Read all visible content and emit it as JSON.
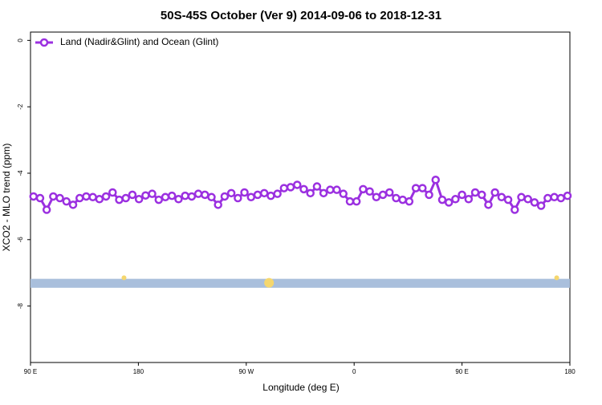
{
  "chart_data": {
    "type": "line",
    "title": "50S-45S October (Ver 9)   2014-09-06 to 2018-12-31",
    "x_label": "Longitude (deg E)",
    "y_label": "XCO2 - MLO trend (ppm)",
    "xlim": [
      90,
      540
    ],
    "ylim": [
      -9.7,
      0.25
    ],
    "xticks": [
      {
        "value": 90,
        "label": "90 E"
      },
      {
        "value": 180,
        "label": "180"
      },
      {
        "value": 270,
        "label": "90 W"
      },
      {
        "value": 360,
        "label": "0"
      },
      {
        "value": 450,
        "label": "90 E"
      },
      {
        "value": 540,
        "label": "180"
      }
    ],
    "yticks": [
      0,
      -2,
      -4,
      -6,
      -8
    ],
    "legend_position": "top-left",
    "x": [
      92.5,
      98,
      103.5,
      109,
      114.5,
      120,
      125.5,
      131,
      136.5,
      142,
      147.5,
      153,
      158.5,
      164,
      169.5,
      175,
      180.5,
      186,
      191.5,
      197,
      202.5,
      208,
      213.5,
      219,
      224.5,
      230,
      235.5,
      241,
      246.5,
      252,
      257.5,
      263,
      268.5,
      274,
      279.5,
      285,
      290.5,
      296,
      301.5,
      307,
      312.5,
      318,
      323.5,
      329,
      334.5,
      340,
      345.5,
      351,
      356.5,
      362,
      367.5,
      373,
      378.5,
      384,
      389.5,
      395,
      400.5,
      406,
      411.5,
      417,
      422.5,
      428,
      433.5,
      439,
      444.5,
      450,
      455.5,
      461,
      466.5,
      472,
      477.5,
      483,
      488.5,
      494,
      499.5,
      505,
      510.5,
      516,
      521.5,
      527,
      532.5,
      538
    ],
    "series": [
      {
        "name": "Land (Nadir&Glint) and Ocean (Glint)",
        "color": "#9b30e0",
        "values": [
          -4.7,
          -4.75,
          -5.1,
          -4.7,
          -4.75,
          -4.85,
          -4.95,
          -4.75,
          -4.7,
          -4.72,
          -4.78,
          -4.7,
          -4.58,
          -4.8,
          -4.75,
          -4.65,
          -4.78,
          -4.67,
          -4.62,
          -4.8,
          -4.72,
          -4.68,
          -4.78,
          -4.68,
          -4.7,
          -4.62,
          -4.65,
          -4.72,
          -4.95,
          -4.7,
          -4.6,
          -4.75,
          -4.58,
          -4.72,
          -4.65,
          -4.6,
          -4.68,
          -4.62,
          -4.45,
          -4.42,
          -4.35,
          -4.48,
          -4.6,
          -4.4,
          -4.6,
          -4.5,
          -4.5,
          -4.62,
          -4.85,
          -4.85,
          -4.48,
          -4.55,
          -4.72,
          -4.65,
          -4.58,
          -4.75,
          -4.8,
          -4.85,
          -4.45,
          -4.45,
          -4.65,
          -4.2,
          -4.8,
          -4.88,
          -4.78,
          -4.65,
          -4.78,
          -4.58,
          -4.65,
          -4.95,
          -4.58,
          -4.72,
          -4.8,
          -5.1,
          -4.72,
          -4.78,
          -4.88,
          -4.98,
          -4.75,
          -4.72,
          -4.75,
          -4.68
        ]
      }
    ],
    "band": {
      "range": [
        -7.45,
        -7.18
      ],
      "color": "#a9bfdc"
    },
    "markers": {
      "color": "#f5d76e",
      "x": [
        168,
        289,
        529
      ],
      "values": [
        -7.15,
        -7.3,
        -7.15
      ]
    }
  }
}
